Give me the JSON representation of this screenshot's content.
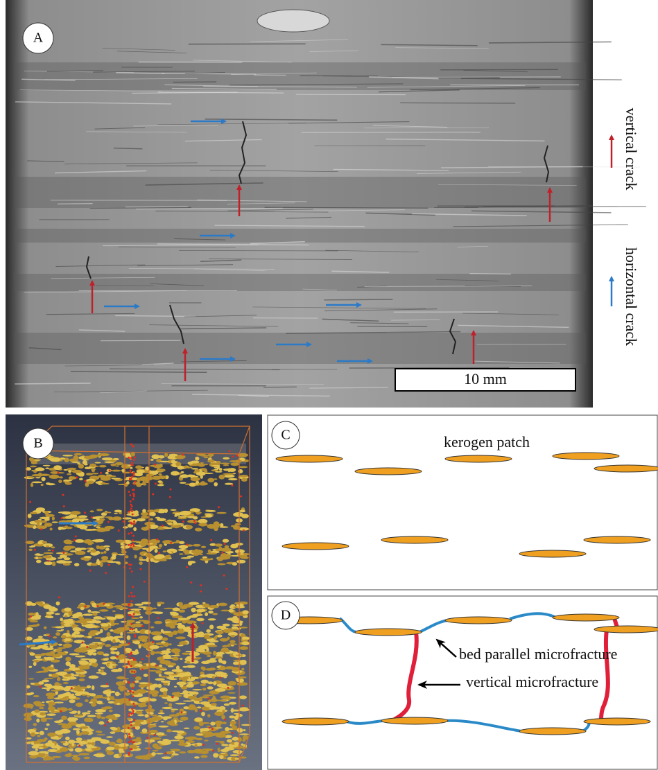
{
  "panel_a": {
    "label": "A",
    "legend": {
      "vertical": "vertical crack",
      "horizontal": "horizontal crack"
    },
    "scale_bar": "10 mm"
  },
  "panel_b": {
    "label": "B"
  },
  "panel_c": {
    "label": "C",
    "annotation": "kerogen patch"
  },
  "panel_d": {
    "label": "D",
    "annotations": [
      "bed parallel microfracture",
      "vertical microfracture"
    ]
  }
}
